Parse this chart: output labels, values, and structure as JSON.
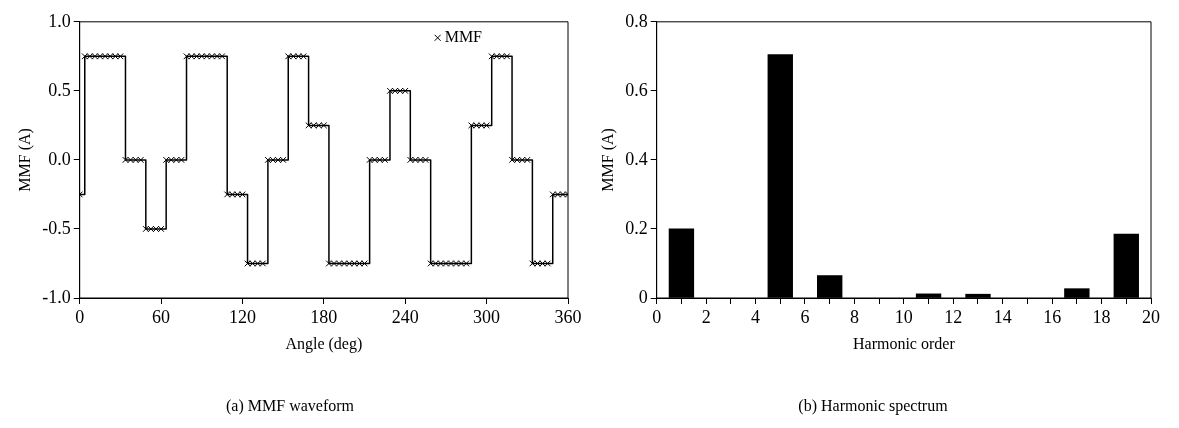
{
  "chart_data": [
    {
      "type": "step",
      "title": "(a) MMF waveform",
      "xlabel": "Angle (deg)",
      "ylabel": "MMF (A)",
      "x": [
        0,
        3.75,
        7.5,
        11.25,
        15,
        18.75,
        22.5,
        26.25,
        30,
        33.75,
        37.5,
        41.25,
        45,
        48.75,
        52.5,
        56.25,
        60,
        63.75,
        67.5,
        71.25,
        75,
        78.75,
        82.5,
        86.25,
        90,
        93.75,
        97.5,
        101.25,
        105,
        108.75,
        112.5,
        116.25,
        120,
        123.75,
        127.5,
        131.25,
        135,
        138.75,
        142.5,
        146.25,
        150,
        153.75,
        157.5,
        161.25,
        165,
        168.75,
        172.5,
        176.25,
        180,
        183.75,
        187.5,
        191.25,
        195,
        198.75,
        202.5,
        206.25,
        210,
        213.75,
        217.5,
        221.25,
        225,
        228.75,
        232.5,
        236.25,
        240,
        243.75,
        247.5,
        251.25,
        255,
        258.75,
        262.5,
        266.25,
        270,
        273.75,
        277.5,
        281.25,
        285,
        288.75,
        292.5,
        296.25,
        300,
        303.75,
        307.5,
        311.25,
        315,
        318.75,
        322.5,
        326.25,
        330,
        333.75,
        337.5,
        341.25,
        345,
        348.75,
        352.5,
        356.25,
        360
      ],
      "series": [
        {
          "name": "MMF",
          "color": "#000000",
          "values": [
            -0.25,
            0.75,
            0.75,
            0.75,
            0.75,
            0.75,
            0.75,
            0.75,
            0.75,
            0,
            0,
            0,
            0,
            -0.5,
            -0.5,
            -0.5,
            -0.5,
            0,
            0,
            0,
            0,
            0.75,
            0.75,
            0.75,
            0.75,
            0.75,
            0.75,
            0.75,
            0.75,
            -0.25,
            -0.25,
            -0.25,
            -0.25,
            -0.75,
            -0.75,
            -0.75,
            -0.75,
            0,
            0,
            0,
            0,
            0.75,
            0.75,
            0.75,
            0.75,
            0.25,
            0.25,
            0.25,
            0.25,
            -0.75,
            -0.75,
            -0.75,
            -0.75,
            -0.75,
            -0.75,
            -0.75,
            -0.75,
            0,
            0,
            0,
            0,
            0.5,
            0.5,
            0.5,
            0.5,
            0,
            0,
            0,
            0,
            -0.75,
            -0.75,
            -0.75,
            -0.75,
            -0.75,
            -0.75,
            -0.75,
            -0.75,
            0.25,
            0.25,
            0.25,
            0.25,
            0.75,
            0.75,
            0.75,
            0.75,
            0,
            0,
            0,
            0,
            -0.75,
            -0.75,
            -0.75,
            -0.75,
            -0.25,
            -0.25,
            -0.25,
            -0.25
          ]
        }
      ],
      "xlim": [
        0,
        360
      ],
      "xticks": [
        0,
        60,
        120,
        180,
        240,
        300,
        360
      ],
      "ylim": [
        -1,
        1
      ],
      "yticks": [
        {
          "value": -1,
          "label": "-1.0"
        },
        {
          "value": -0.5,
          "label": "-0.5"
        },
        {
          "value": 0,
          "label": "0.0"
        },
        {
          "value": 0.5,
          "label": "0.5"
        },
        {
          "value": 1,
          "label": "1.0"
        }
      ],
      "marker": "cross",
      "legend": "top right",
      "grid": false
    },
    {
      "type": "bar",
      "title": "(b) Harmonic spectrum",
      "xlabel": "Harmonic order",
      "ylabel": "MMF (A)",
      "x": [
        1,
        5,
        7,
        11,
        13,
        17,
        19
      ],
      "values": [
        0.2,
        0.705,
        0.065,
        0.012,
        0.011,
        0.027,
        0.185
      ],
      "color": "#000000",
      "xlim": [
        0,
        20
      ],
      "xticks": [
        0,
        {
          "value": 1,
          "label": null
        },
        2,
        {
          "value": 3,
          "label": null
        },
        4,
        {
          "value": 5,
          "label": null
        },
        6,
        {
          "value": 7,
          "label": null
        },
        8,
        {
          "value": 9,
          "label": null
        },
        10,
        {
          "value": 11,
          "label": null
        },
        12,
        {
          "value": 13,
          "label": null
        },
        14,
        {
          "value": 15,
          "label": null
        },
        16,
        {
          "value": 17,
          "label": null
        },
        18,
        {
          "value": 19,
          "label": null
        },
        20
      ],
      "ylim": [
        0,
        0.8
      ],
      "yticks": [
        0,
        0.2,
        0.4,
        0.6,
        0.8
      ],
      "legend": false,
      "grid": false
    }
  ]
}
